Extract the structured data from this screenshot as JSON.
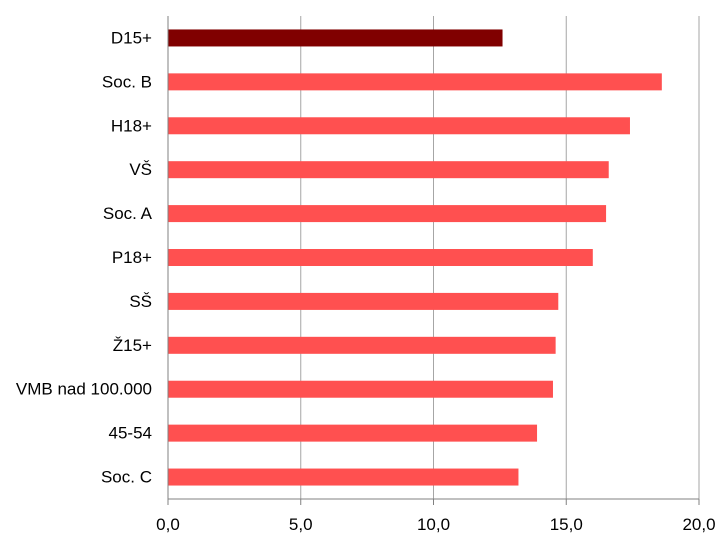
{
  "chart_data": {
    "type": "bar",
    "orientation": "horizontal",
    "title": "",
    "xlabel": "",
    "ylabel": "",
    "categories": [
      "D15+",
      "Soc. B",
      "H18+",
      "VŠ",
      "Soc. A",
      "P18+",
      "SŠ",
      "Ž15+",
      "VMB nad 100.000",
      "45-54",
      "Soc. C"
    ],
    "values": [
      12.6,
      18.6,
      17.4,
      16.6,
      16.5,
      16.0,
      14.7,
      14.6,
      14.5,
      13.9,
      13.2
    ],
    "highlight": [
      true,
      false,
      false,
      false,
      false,
      false,
      false,
      false,
      false,
      false,
      false
    ],
    "xlim": [
      0,
      20
    ],
    "xticks": [
      0,
      5,
      10,
      15,
      20
    ],
    "xtick_labels": [
      "0,0",
      "5,0",
      "10,0",
      "15,0",
      "20,0"
    ],
    "grid": "vertical",
    "legend": "none",
    "colors": {
      "highlight": "#800000",
      "bar": "#ff5050",
      "grid": "#a6a6a6",
      "axis": "#808080"
    }
  }
}
